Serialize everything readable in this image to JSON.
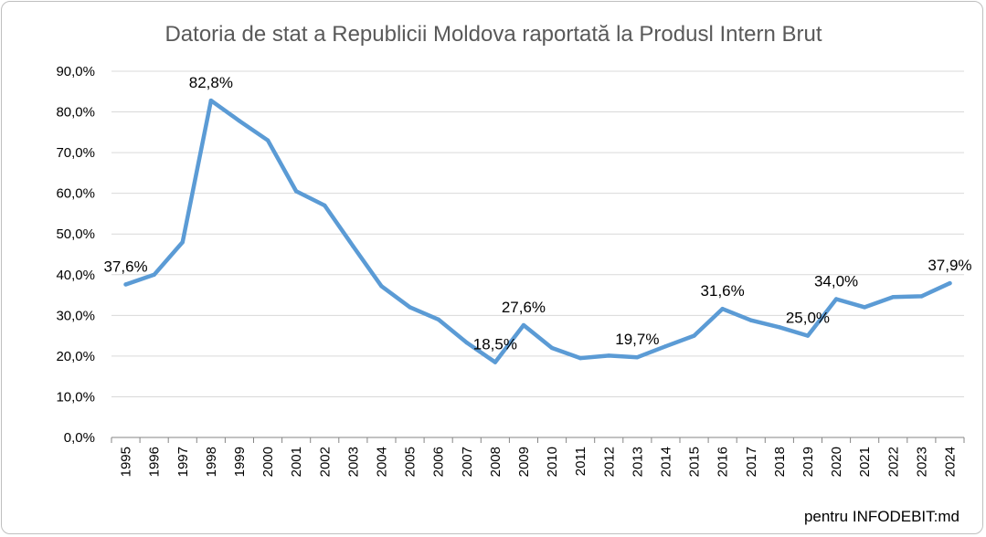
{
  "chart_data": {
    "type": "line",
    "title": "Datoria de stat a Republicii Moldova raportată la Produsl Intern Brut",
    "xlabel": "",
    "ylabel": "",
    "ylim": [
      0,
      90
    ],
    "y_ticks": [
      "0,0%",
      "10,0%",
      "20,0%",
      "30,0%",
      "40,0%",
      "50,0%",
      "60,0%",
      "70,0%",
      "80,0%",
      "90,0%"
    ],
    "categories": [
      "1995",
      "1996",
      "1997",
      "1998",
      "1999",
      "2000",
      "2001",
      "2002",
      "2003",
      "2004",
      "2005",
      "2006",
      "2007",
      "2008",
      "2009",
      "2010",
      "2011",
      "2012",
      "2013",
      "2014",
      "2015",
      "2016",
      "2017",
      "2018",
      "2019",
      "2020",
      "2021",
      "2022",
      "2023",
      "2024"
    ],
    "series": [
      {
        "values": [
          37.6,
          40.0,
          48.0,
          82.8,
          77.8,
          73.0,
          60.5,
          57.0,
          47.0,
          37.2,
          32.0,
          29.0,
          23.3,
          18.5,
          27.6,
          22.0,
          19.5,
          20.1,
          19.7,
          22.4,
          25.0,
          31.6,
          28.8,
          27.1,
          25.0,
          34.0,
          32.0,
          34.5,
          34.7,
          37.9
        ],
        "color": "#5b9bd5"
      }
    ],
    "data_labels": [
      {
        "index": 0,
        "text": "37,6%"
      },
      {
        "index": 3,
        "text": "82,8%"
      },
      {
        "index": 13,
        "text": "18,5%"
      },
      {
        "index": 14,
        "text": "27,6%"
      },
      {
        "index": 18,
        "text": "19,7%"
      },
      {
        "index": 21,
        "text": "31,6%"
      },
      {
        "index": 24,
        "text": "25,0%"
      },
      {
        "index": 25,
        "text": "34,0%"
      },
      {
        "index": 29,
        "text": "37,9%"
      }
    ],
    "grid": true,
    "legend": "none"
  },
  "credit": "pentru INFODEBIT:md"
}
